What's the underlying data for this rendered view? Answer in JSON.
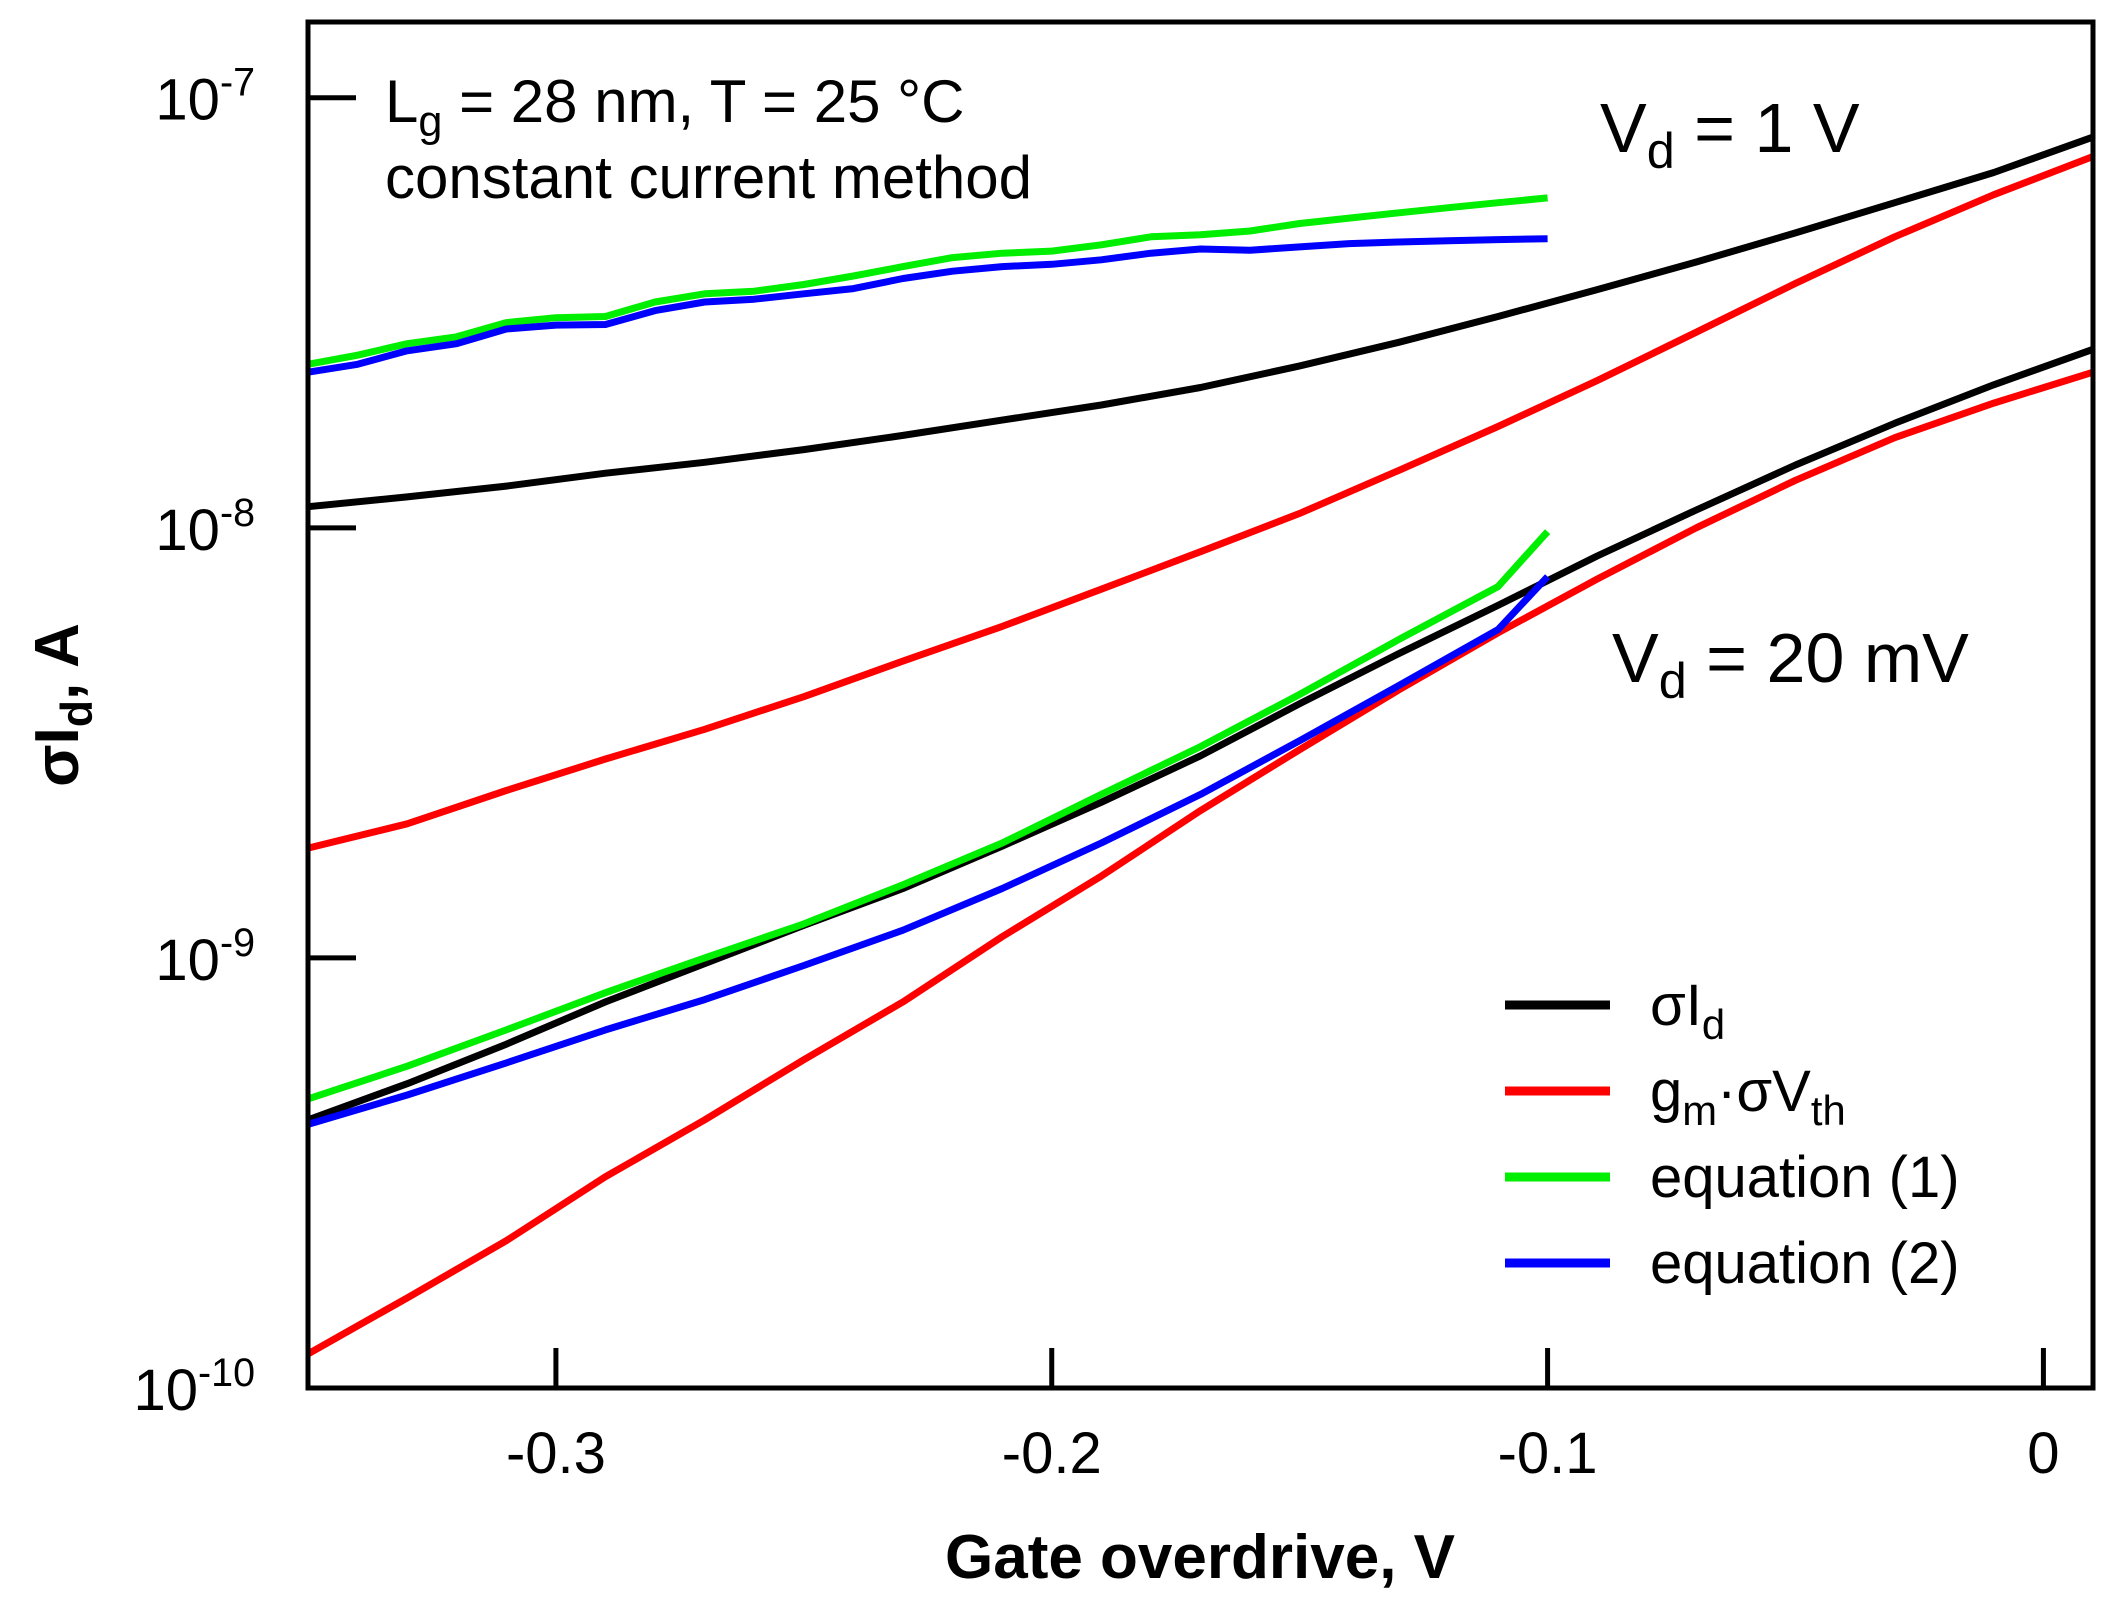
{
  "chart_data": {
    "type": "line",
    "x_scale": "linear",
    "y_scale": "log",
    "xlim": [
      -0.35,
      0.01
    ],
    "ylim": [
      1e-10,
      1.5e-07
    ],
    "x_ticks": [
      -0.3,
      -0.2,
      -0.1,
      0
    ],
    "x_tick_labels": [
      "-0.3",
      "-0.2",
      "-0.1",
      "0"
    ],
    "y_ticks": [
      1e-10,
      1e-09,
      1e-08,
      1e-07
    ],
    "y_tick_labels": [
      {
        "base": "10",
        "exp": "-10"
      },
      {
        "base": "10",
        "exp": "-9"
      },
      {
        "base": "10",
        "exp": "-8"
      },
      {
        "base": "10",
        "exp": "-7"
      }
    ],
    "xlabel": "Gate overdrive, V",
    "ylabel": {
      "main": "σI",
      "sub": "d",
      "rest": ", A"
    },
    "grid": false,
    "legend_placement": "bottom-right",
    "annotations": {
      "device_line1": {
        "a": "L",
        "sub": "g",
        "b": " = 28 nm, T = 25 °C"
      },
      "device_line2": "constant current method",
      "vd_high": {
        "a": "V",
        "sub": "d",
        "b": " = 1 V"
      },
      "vd_low": {
        "a": "V",
        "sub": "d",
        "b": " = 20 mV"
      }
    },
    "legend": [
      {
        "key": "sigma_id",
        "parts": [
          {
            "t": "σI"
          },
          {
            "t": "d",
            "sub": true
          }
        ]
      },
      {
        "key": "gm_sigma_vth",
        "parts": [
          {
            "t": "g"
          },
          {
            "t": "m",
            "sub": true
          },
          {
            "t": "·σV"
          },
          {
            "t": "th",
            "sub": true
          }
        ]
      },
      {
        "key": "eq1",
        "parts": [
          {
            "t": "equation (1)"
          }
        ]
      },
      {
        "key": "eq2",
        "parts": [
          {
            "t": "equation (2)"
          }
        ]
      }
    ],
    "colors": {
      "sigma_id": "#000000",
      "gm_sigma_vth": "#ff0000",
      "eq1": "#00ee00",
      "eq2": "#0000ff"
    },
    "series": [
      {
        "key": "sigma_id",
        "group": "vd_1V",
        "x": [
          -0.35,
          -0.33,
          -0.31,
          -0.29,
          -0.27,
          -0.25,
          -0.23,
          -0.21,
          -0.19,
          -0.17,
          -0.15,
          -0.13,
          -0.11,
          -0.09,
          -0.07,
          -0.05,
          -0.03,
          -0.01,
          0.01
        ],
        "y": [
          1.12e-08,
          1.18e-08,
          1.25e-08,
          1.34e-08,
          1.42e-08,
          1.52e-08,
          1.64e-08,
          1.78e-08,
          1.93e-08,
          2.12e-08,
          2.38e-08,
          2.7e-08,
          3.1e-08,
          3.58e-08,
          4.15e-08,
          4.85e-08,
          5.7e-08,
          6.7e-08,
          8.1e-08
        ]
      },
      {
        "key": "gm_sigma_vth",
        "group": "vd_1V",
        "x": [
          -0.35,
          -0.33,
          -0.31,
          -0.29,
          -0.27,
          -0.25,
          -0.23,
          -0.21,
          -0.19,
          -0.17,
          -0.15,
          -0.13,
          -0.11,
          -0.09,
          -0.07,
          -0.05,
          -0.03,
          -0.01,
          0.01
        ],
        "y": [
          1.8e-09,
          2.05e-09,
          2.45e-09,
          2.9e-09,
          3.4e-09,
          4.05e-09,
          4.9e-09,
          5.9e-09,
          7.2e-09,
          8.8e-09,
          1.08e-08,
          1.36e-08,
          1.72e-08,
          2.2e-08,
          2.85e-08,
          3.7e-08,
          4.75e-08,
          5.95e-08,
          7.3e-08
        ]
      },
      {
        "key": "eq1",
        "group": "vd_1V",
        "x": [
          -0.35,
          -0.34,
          -0.33,
          -0.32,
          -0.31,
          -0.3,
          -0.29,
          -0.28,
          -0.27,
          -0.26,
          -0.25,
          -0.24,
          -0.23,
          -0.22,
          -0.21,
          -0.2,
          -0.19,
          -0.18,
          -0.17,
          -0.16,
          -0.15,
          -0.14,
          -0.13,
          -0.12,
          -0.11,
          -0.1
        ],
        "y": [
          2.4e-08,
          2.52e-08,
          2.68e-08,
          2.78e-08,
          3e-08,
          3.08e-08,
          3.1e-08,
          3.35e-08,
          3.5e-08,
          3.55e-08,
          3.68e-08,
          3.85e-08,
          4.05e-08,
          4.25e-08,
          4.35e-08,
          4.4e-08,
          4.55e-08,
          4.75e-08,
          4.8e-08,
          4.9e-08,
          5.1e-08,
          5.25e-08,
          5.4e-08,
          5.55e-08,
          5.7e-08,
          5.85e-08
        ]
      },
      {
        "key": "eq2",
        "group": "vd_1V",
        "x": [
          -0.35,
          -0.34,
          -0.33,
          -0.32,
          -0.31,
          -0.3,
          -0.29,
          -0.28,
          -0.27,
          -0.26,
          -0.25,
          -0.24,
          -0.23,
          -0.22,
          -0.21,
          -0.2,
          -0.19,
          -0.18,
          -0.17,
          -0.16,
          -0.15,
          -0.14,
          -0.13,
          -0.12,
          -0.11,
          -0.1
        ],
        "y": [
          2.3e-08,
          2.4e-08,
          2.58e-08,
          2.68e-08,
          2.9e-08,
          2.96e-08,
          2.97e-08,
          3.2e-08,
          3.35e-08,
          3.4e-08,
          3.5e-08,
          3.6e-08,
          3.8e-08,
          3.95e-08,
          4.05e-08,
          4.1e-08,
          4.2e-08,
          4.35e-08,
          4.45e-08,
          4.42e-08,
          4.5e-08,
          4.58e-08,
          4.62e-08,
          4.65e-08,
          4.68e-08,
          4.7e-08
        ]
      },
      {
        "key": "sigma_id",
        "group": "vd_20mV",
        "x": [
          -0.35,
          -0.33,
          -0.31,
          -0.29,
          -0.27,
          -0.25,
          -0.23,
          -0.21,
          -0.19,
          -0.17,
          -0.15,
          -0.13,
          -0.11,
          -0.09,
          -0.07,
          -0.05,
          -0.03,
          -0.01,
          0.01
        ],
        "y": [
          4.2e-10,
          5.1e-10,
          6.3e-10,
          7.9e-10,
          9.7e-10,
          1.19e-09,
          1.45e-09,
          1.82e-09,
          2.3e-09,
          2.95e-09,
          3.9e-09,
          5.1e-09,
          6.6e-09,
          8.6e-09,
          1.1e-08,
          1.4e-08,
          1.75e-08,
          2.15e-08,
          2.6e-08
        ]
      },
      {
        "key": "gm_sigma_vth",
        "group": "vd_20mV",
        "x": [
          -0.35,
          -0.33,
          -0.31,
          -0.29,
          -0.27,
          -0.25,
          -0.23,
          -0.21,
          -0.19,
          -0.17,
          -0.15,
          -0.13,
          -0.11,
          -0.09,
          -0.07,
          -0.05,
          -0.03,
          -0.01,
          0.01
        ],
        "y": [
          1.2e-10,
          1.62e-10,
          2.2e-10,
          3.1e-10,
          4.2e-10,
          5.8e-10,
          7.9e-10,
          1.12e-09,
          1.55e-09,
          2.2e-09,
          3.05e-09,
          4.2e-09,
          5.7e-09,
          7.6e-09,
          1e-08,
          1.29e-08,
          1.62e-08,
          1.95e-08,
          2.3e-08
        ]
      },
      {
        "key": "eq1",
        "group": "vd_20mV",
        "x": [
          -0.35,
          -0.33,
          -0.31,
          -0.29,
          -0.27,
          -0.25,
          -0.23,
          -0.21,
          -0.19,
          -0.17,
          -0.15,
          -0.13,
          -0.11,
          -0.1
        ],
        "y": [
          4.7e-10,
          5.6e-10,
          6.8e-10,
          8.3e-10,
          1e-09,
          1.2e-09,
          1.48e-09,
          1.85e-09,
          2.4e-09,
          3.1e-09,
          4.1e-09,
          5.5e-09,
          7.3e-09,
          9.8e-09
        ]
      },
      {
        "key": "eq2",
        "group": "vd_20mV",
        "x": [
          -0.35,
          -0.33,
          -0.31,
          -0.29,
          -0.27,
          -0.25,
          -0.23,
          -0.21,
          -0.19,
          -0.17,
          -0.15,
          -0.13,
          -0.11,
          -0.1
        ],
        "y": [
          4.1e-10,
          4.8e-10,
          5.7e-10,
          6.8e-10,
          8e-10,
          9.6e-10,
          1.16e-09,
          1.45e-09,
          1.85e-09,
          2.4e-09,
          3.2e-09,
          4.3e-09,
          5.8e-09,
          7.7e-09
        ]
      }
    ]
  }
}
